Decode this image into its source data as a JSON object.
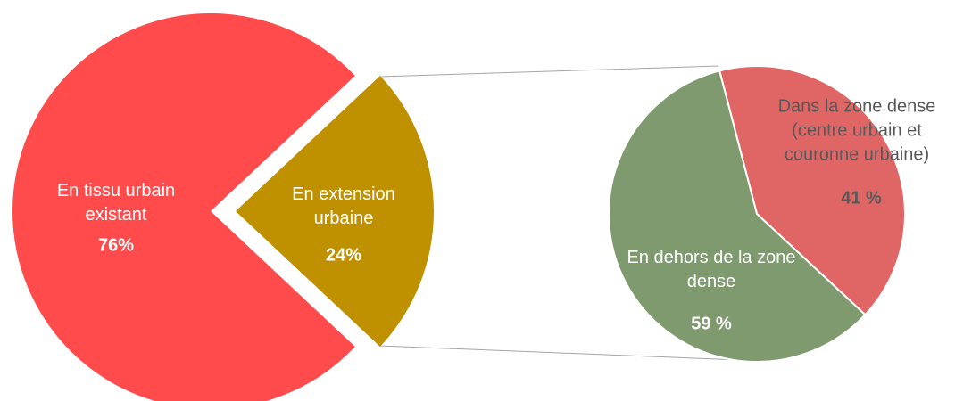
{
  "chart_data": [
    {
      "type": "pie",
      "categories": [
        "En tissu urbain existant",
        "En extension urbaine"
      ],
      "values": [
        76,
        24
      ],
      "value_labels": [
        "76%",
        "24%"
      ],
      "colors": [
        "#ff4b4b",
        "#bf9000"
      ]
    },
    {
      "type": "pie",
      "categories": [
        "Dans la zone dense (centre urbain et couronne urbaine)",
        "En dehors de la zone dense"
      ],
      "values": [
        41,
        59
      ],
      "value_labels": [
        "41 %",
        "59 %"
      ],
      "colors": [
        "#e06666",
        "#7f9a6e"
      ]
    }
  ]
}
